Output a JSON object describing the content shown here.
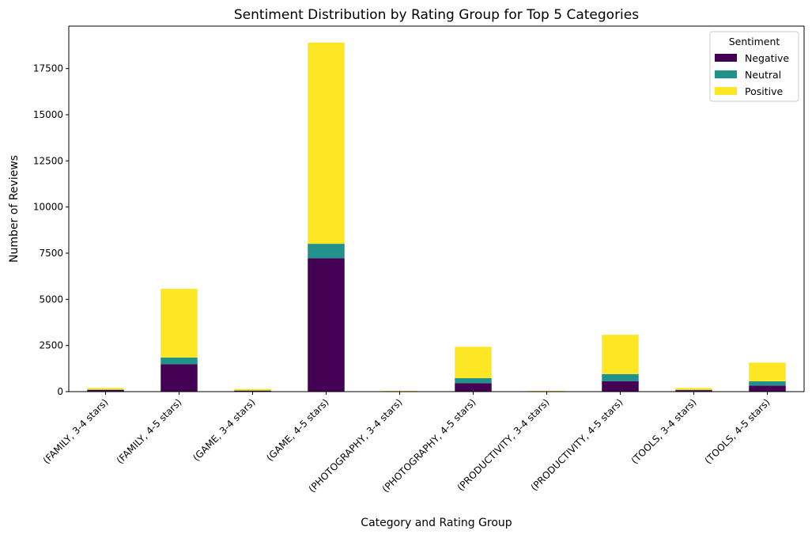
{
  "chart_data": {
    "type": "bar",
    "stacked": true,
    "title": "Sentiment Distribution by Rating Group for Top 5 Categories",
    "xlabel": "Category and Rating Group",
    "ylabel": "Number of Reviews",
    "ylim": [
      0,
      19800
    ],
    "yticks": [
      0,
      2500,
      5000,
      7500,
      10000,
      12500,
      15000,
      17500
    ],
    "categories": [
      "(FAMILY, 3-4 stars)",
      "(FAMILY, 4-5 stars)",
      "(GAME, 3-4 stars)",
      "(GAME, 4-5 stars)",
      "(PHOTOGRAPHY, 3-4 stars)",
      "(PHOTOGRAPHY, 4-5 stars)",
      "(PRODUCTIVITY, 3-4 stars)",
      "(PRODUCTIVITY, 4-5 stars)",
      "(TOOLS, 3-4 stars)",
      "(TOOLS, 4-5 stars)"
    ],
    "legend_title": "Sentiment",
    "legend_position": "top-right",
    "grid": false,
    "series": [
      {
        "name": "Negative",
        "color": "#440154",
        "values": [
          90,
          1480,
          50,
          7230,
          15,
          460,
          15,
          560,
          80,
          330
        ]
      },
      {
        "name": "Neutral",
        "color": "#21918c",
        "values": [
          20,
          370,
          20,
          780,
          5,
          270,
          5,
          390,
          20,
          230
        ]
      },
      {
        "name": "Positive",
        "color": "#fde725",
        "values": [
          90,
          3720,
          80,
          10900,
          20,
          1700,
          20,
          2130,
          100,
          1010
        ]
      }
    ]
  }
}
